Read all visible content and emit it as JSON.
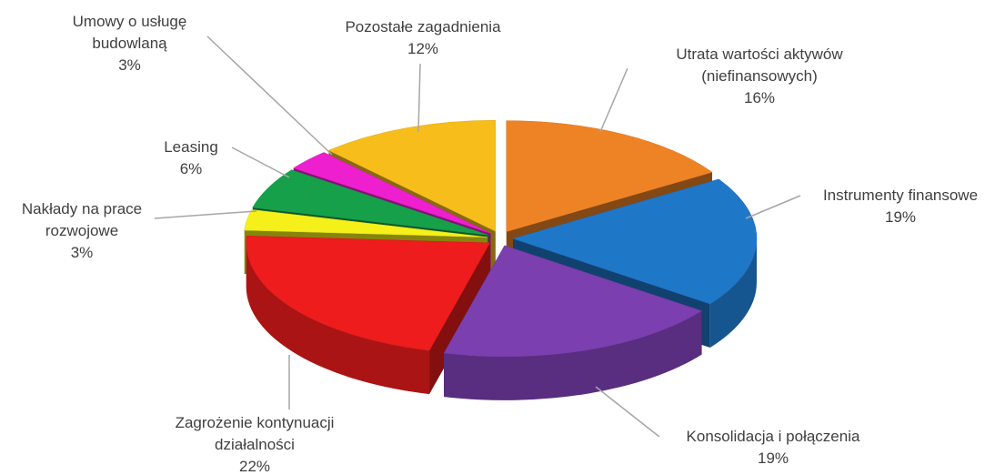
{
  "chart_data": {
    "type": "pie3d",
    "categories": [
      "Utrata wartości aktywów (niefinansowych)",
      "Instrumenty finansowe",
      "Konsolidacja i połączenia",
      "Zagrożenie kontynuacji działalności",
      "Nakłady na prace rozwojowe",
      "Leasing",
      "Umowy o usługę budowlaną",
      "Pozostałe zagadnienia"
    ],
    "values": [
      16,
      19,
      19,
      22,
      3,
      6,
      3,
      12
    ],
    "value_labels": [
      "16%",
      "19%",
      "19%",
      "22%",
      "3%",
      "6%",
      "3%",
      "12%"
    ],
    "colors": [
      "#ee8325",
      "#1f77c8",
      "#7b3fb0",
      "#ee1c1c",
      "#f5f01a",
      "#16a04a",
      "#ee1fcf",
      "#f7be1b"
    ]
  }
}
